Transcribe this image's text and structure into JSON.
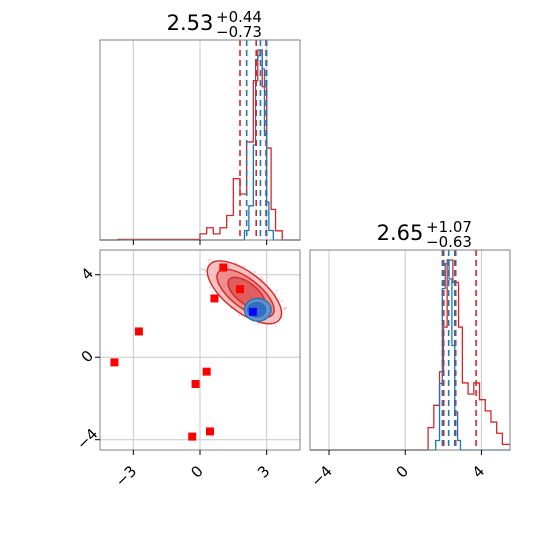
{
  "colors": {
    "red": "#d62728",
    "blue": "#1f77b4",
    "grid": "#c8c8c8",
    "spine": "#808080",
    "red_fill_light": "#f4b6b6",
    "red_fill_dark": "#e05555",
    "blue_fill": "#5b8fd6",
    "blue_fill_dark": "#2f68c4"
  },
  "chart_data": [
    {
      "type": "histogram",
      "panel": "top-left",
      "title": {
        "value": "2.53",
        "plus": "+0.44",
        "minus": "−0.73"
      },
      "xlim": [
        -4.5,
        4.5
      ],
      "grid": true,
      "series": [
        {
          "name": "",
          "color": "#d62728",
          "bins": [
            [
              -4.5,
              -3.7,
              0
            ],
            [
              -3.7,
              0.0,
              0.002
            ],
            [
              0.0,
              0.3,
              0.02
            ],
            [
              0.3,
              0.6,
              0.04
            ],
            [
              0.6,
              0.9,
              0.02
            ],
            [
              0.9,
              1.2,
              0.04
            ],
            [
              1.2,
              1.5,
              0.08
            ],
            [
              1.5,
              1.8,
              0.2
            ],
            [
              1.8,
              2.1,
              0.15
            ],
            [
              2.1,
              2.4,
              0.32
            ],
            [
              2.4,
              2.6,
              0.52
            ],
            [
              2.6,
              2.8,
              0.62
            ],
            [
              2.8,
              3.0,
              0.5
            ],
            [
              3.0,
              3.2,
              0.3
            ],
            [
              3.2,
              3.4,
              0.1
            ],
            [
              3.4,
              3.7,
              0.03
            ],
            [
              3.7,
              4.5,
              0
            ]
          ],
          "quantile_lines": [
            1.8,
            2.53,
            2.97
          ]
        },
        {
          "name": "",
          "color": "#1f77b4",
          "bins": [
            [
              -4.5,
              2.0,
              0
            ],
            [
              2.0,
              2.2,
              0.05
            ],
            [
              2.2,
              2.4,
              0.18
            ],
            [
              2.4,
              2.5,
              0.5
            ],
            [
              2.5,
              2.6,
              0.95
            ],
            [
              2.6,
              2.7,
              0.97
            ],
            [
              2.7,
              2.8,
              1.0
            ],
            [
              2.8,
              2.9,
              0.9
            ],
            [
              2.9,
              3.0,
              0.55
            ],
            [
              3.0,
              3.1,
              0.2
            ],
            [
              3.1,
              3.3,
              0.05
            ],
            [
              3.3,
              4.5,
              0
            ]
          ],
          "quantile_lines": [
            2.1,
            2.72,
            3.0
          ]
        }
      ]
    },
    {
      "type": "scatter",
      "panel": "bottom-left",
      "xlim": [
        -4.5,
        4.5
      ],
      "ylim": [
        -4.5,
        5.2
      ],
      "xticks": [
        "−3",
        "0",
        "3"
      ],
      "xtick_values": [
        -3,
        0,
        3
      ],
      "yticks": [
        "−4",
        "0",
        "4"
      ],
      "ytick_values": [
        -4,
        0,
        4
      ],
      "grid": true,
      "red_points": [
        {
          "x": 1.05,
          "y": 4.35
        },
        {
          "x": 1.8,
          "y": 3.3
        },
        {
          "x": 0.65,
          "y": 2.85
        },
        {
          "x": -2.75,
          "y": 1.25
        },
        {
          "x": -3.85,
          "y": -0.25
        },
        {
          "x": 0.3,
          "y": -0.7
        },
        {
          "x": -0.2,
          "y": -1.3
        },
        {
          "x": 0.45,
          "y": -3.6
        },
        {
          "x": -0.35,
          "y": -3.85
        }
      ],
      "blue_points": [
        {
          "x": 2.38,
          "y": 2.2
        }
      ],
      "red_contours": [
        {
          "cx": 2.0,
          "cy": 3.15,
          "rx": 2.0,
          "ry": 0.95,
          "angle": -38
        },
        {
          "cx": 2.05,
          "cy": 3.1,
          "rx": 1.55,
          "ry": 0.7,
          "angle": -38
        },
        {
          "cx": 2.1,
          "cy": 3.1,
          "rx": 1.0,
          "ry": 0.5,
          "angle": -38
        }
      ],
      "blue_contours": [
        {
          "cx": 2.6,
          "cy": 2.3,
          "rx": 0.6,
          "ry": 0.55,
          "angle": 0
        },
        {
          "cx": 2.55,
          "cy": 2.3,
          "rx": 0.4,
          "ry": 0.35,
          "angle": 0
        }
      ]
    },
    {
      "type": "histogram",
      "panel": "bottom-right",
      "title": {
        "value": "2.65",
        "plus": "+1.07",
        "minus": "−0.63"
      },
      "xlim": [
        -5.0,
        5.5
      ],
      "xticks": [
        "−4",
        "0",
        "4"
      ],
      "xtick_values": [
        -4,
        0,
        4
      ],
      "grid": true,
      "series": [
        {
          "name": "",
          "color": "#d62728",
          "bins": [
            [
              -5.0,
              1.2,
              0
            ],
            [
              1.2,
              1.5,
              0.04
            ],
            [
              1.5,
              1.8,
              0.08
            ],
            [
              1.8,
              2.0,
              0.14
            ],
            [
              2.0,
              2.2,
              0.22
            ],
            [
              2.2,
              2.5,
              0.34
            ],
            [
              2.5,
              2.8,
              0.3
            ],
            [
              2.8,
              3.0,
              0.22
            ],
            [
              3.0,
              3.3,
              0.12
            ],
            [
              3.3,
              3.6,
              0.1
            ],
            [
              3.6,
              3.9,
              0.12
            ],
            [
              3.9,
              4.2,
              0.09
            ],
            [
              4.2,
              4.5,
              0.07
            ],
            [
              4.5,
              4.8,
              0.05
            ],
            [
              4.8,
              5.1,
              0.03
            ],
            [
              5.1,
              5.5,
              0.01
            ]
          ],
          "quantile_lines": [
            2.02,
            2.65,
            3.72
          ]
        },
        {
          "name": "",
          "color": "#1f77b4",
          "bins": [
            [
              -5.0,
              1.6,
              0
            ],
            [
              1.6,
              1.8,
              0.05
            ],
            [
              1.8,
              1.95,
              0.35
            ],
            [
              1.95,
              2.1,
              0.85
            ],
            [
              2.1,
              2.2,
              0.98
            ],
            [
              2.2,
              2.3,
              1.0
            ],
            [
              2.3,
              2.45,
              0.9
            ],
            [
              2.45,
              2.6,
              0.55
            ],
            [
              2.6,
              2.75,
              0.2
            ],
            [
              2.75,
              2.9,
              0.05
            ],
            [
              2.9,
              5.5,
              0
            ]
          ],
          "quantile_lines": [
            1.95,
            2.28,
            2.6
          ]
        }
      ]
    }
  ]
}
